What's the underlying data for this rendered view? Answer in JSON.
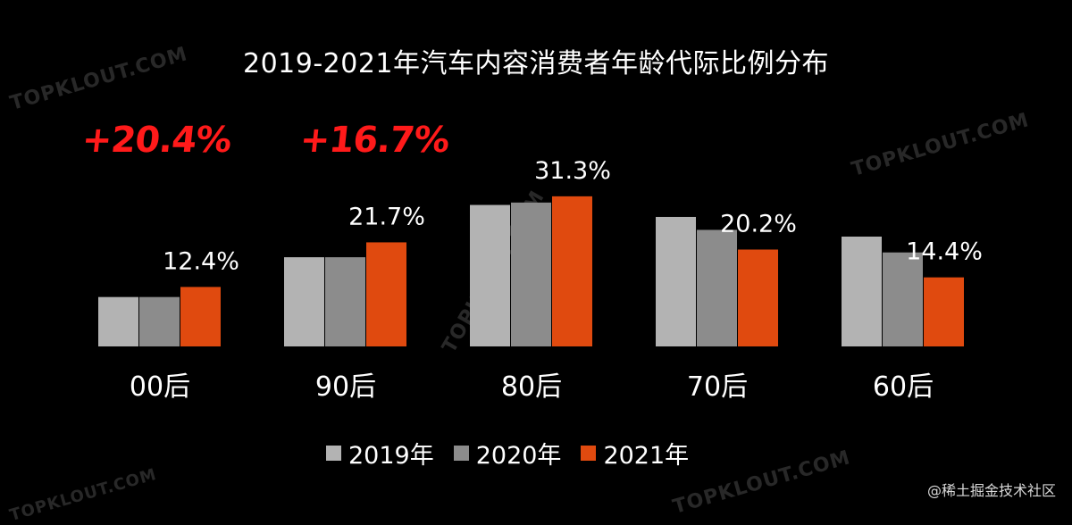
{
  "chart_data": {
    "type": "bar",
    "title": "2019-2021年汽车内容消费者年龄代际比例分布",
    "categories": [
      "00后",
      "90后",
      "80后",
      "70后",
      "60后"
    ],
    "series": [
      {
        "name": "2019年",
        "values": [
          10.3,
          18.6,
          29.5,
          27.0,
          22.9
        ],
        "color": "#b3b3b3"
      },
      {
        "name": "2020年",
        "values": [
          10.3,
          18.6,
          30.0,
          24.3,
          19.6
        ],
        "color": "#8c8c8c"
      },
      {
        "name": "2021年",
        "values": [
          12.4,
          21.7,
          31.3,
          20.2,
          14.4
        ],
        "color": "#e04a0f"
      }
    ],
    "data_labels": [
      "12.4%",
      "21.7%",
      "31.3%",
      "20.2%",
      "14.4%"
    ],
    "ylim": [
      0,
      35
    ],
    "grid": false,
    "legend_position": "bottom",
    "annotations": [
      {
        "category": "00后",
        "text": "+20.4%",
        "color": "#ff1a1a"
      },
      {
        "category": "90后",
        "text": "+16.7%",
        "color": "#ff1a1a"
      }
    ]
  },
  "watermarks": [
    "TOPKLOUT.COM",
    "TOPKLOUT.COM",
    "TOPKLOUT.COM",
    "TOPKLOUT.COM",
    "TOPKLOUT.COM"
  ],
  "credit": "@稀土掘金技术社区"
}
